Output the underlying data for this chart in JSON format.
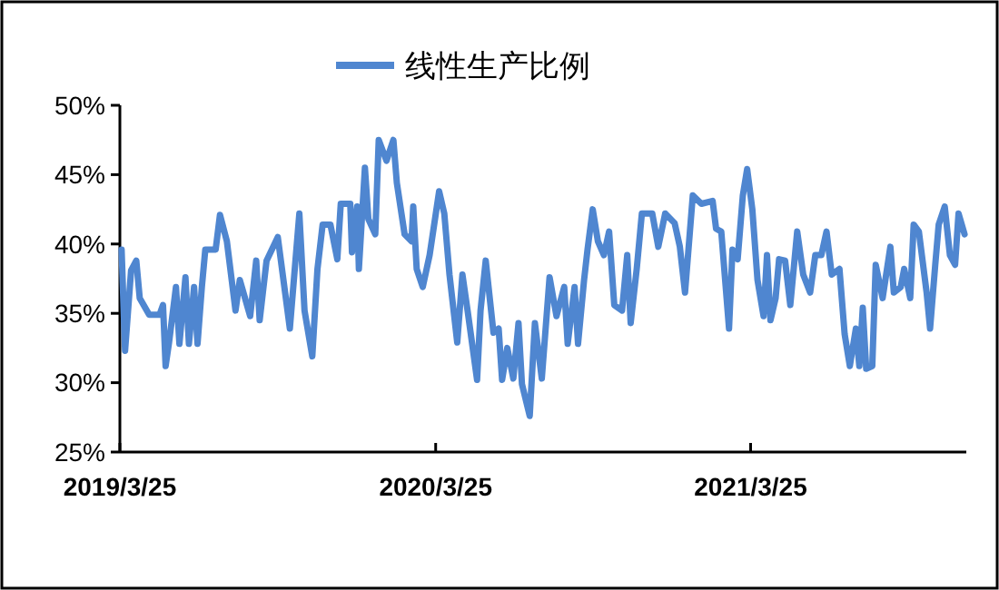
{
  "chart_data": {
    "type": "line",
    "legend": "top",
    "xlim": [
      "2019-03-25",
      "2021-11-30"
    ],
    "xticks": [
      {
        "value": "2019-03-25",
        "label": "2019/3/25"
      },
      {
        "value": "2020-03-25",
        "label": "2020/3/25"
      },
      {
        "value": "2021-03-25",
        "label": "2021/3/25"
      }
    ],
    "ylim": [
      25,
      50
    ],
    "yticks": [
      {
        "value": 25,
        "label": "25%"
      },
      {
        "value": 30,
        "label": "30%"
      },
      {
        "value": 35,
        "label": "35%"
      },
      {
        "value": 40,
        "label": "40%"
      },
      {
        "value": 45,
        "label": "45%"
      },
      {
        "value": 50,
        "label": "50%"
      }
    ],
    "x": [
      "2019-03-27",
      "2019-03-31",
      "2019-04-07",
      "2019-04-13",
      "2019-04-17",
      "2019-04-28",
      "2019-05-10",
      "2019-05-14",
      "2019-05-17",
      "2019-05-21",
      "2019-05-29",
      "2019-06-02",
      "2019-06-09",
      "2019-06-13",
      "2019-06-19",
      "2019-06-23",
      "2019-06-28",
      "2019-07-02",
      "2019-07-14",
      "2019-07-19",
      "2019-07-27",
      "2019-08-06",
      "2019-08-11",
      "2019-08-23",
      "2019-08-30",
      "2019-09-03",
      "2019-09-11",
      "2019-09-24",
      "2019-10-08",
      "2019-10-19",
      "2019-10-25",
      "2019-11-03",
      "2019-11-09",
      "2019-11-15",
      "2019-11-24",
      "2019-12-02",
      "2019-12-06",
      "2019-12-17",
      "2019-12-19",
      "2019-12-25",
      "2019-12-27",
      "2020-01-03",
      "2020-01-07",
      "2020-01-15",
      "2020-01-19",
      "2020-01-28",
      "2020-02-05",
      "2020-02-09",
      "2020-02-18",
      "2020-02-26",
      "2020-02-28",
      "2020-03-03",
      "2020-03-10",
      "2020-03-18",
      "2020-03-29",
      "2020-04-04",
      "2020-04-10",
      "2020-04-19",
      "2020-04-25",
      "2020-05-01",
      "2020-05-12",
      "2020-05-16",
      "2020-05-22",
      "2020-05-31",
      "2020-06-06",
      "2020-06-10",
      "2020-06-16",
      "2020-06-23",
      "2020-06-29",
      "2020-07-03",
      "2020-07-12",
      "2020-07-18",
      "2020-07-26",
      "2020-08-04",
      "2020-08-12",
      "2020-08-21",
      "2020-08-25",
      "2020-09-02",
      "2020-09-06",
      "2020-09-13",
      "2020-09-17",
      "2020-09-23",
      "2020-09-29",
      "2020-10-06",
      "2020-10-12",
      "2020-10-18",
      "2020-10-27",
      "2020-11-02",
      "2020-11-06",
      "2020-11-13",
      "2020-11-19",
      "2020-12-01",
      "2020-12-08",
      "2020-12-16",
      "2020-12-27",
      "2021-01-02",
      "2021-01-08",
      "2021-01-17",
      "2021-01-27",
      "2021-02-09",
      "2021-02-13",
      "2021-02-19",
      "2021-02-28",
      "2021-03-04",
      "2021-03-10",
      "2021-03-16",
      "2021-03-21",
      "2021-03-27",
      "2021-04-02",
      "2021-04-09",
      "2021-04-13",
      "2021-04-17",
      "2021-04-23",
      "2021-04-27",
      "2021-05-04",
      "2021-05-10",
      "2021-05-18",
      "2021-05-25",
      "2021-06-02",
      "2021-06-08",
      "2021-06-15",
      "2021-06-21",
      "2021-06-27",
      "2021-07-06",
      "2021-07-12",
      "2021-07-18",
      "2021-07-25",
      "2021-07-29",
      "2021-08-02",
      "2021-08-06",
      "2021-08-13",
      "2021-08-17",
      "2021-08-25",
      "2021-09-03",
      "2021-09-07",
      "2021-09-15",
      "2021-09-19",
      "2021-09-26",
      "2021-09-30",
      "2021-10-06",
      "2021-10-15",
      "2021-10-19",
      "2021-10-25",
      "2021-10-29",
      "2021-11-05",
      "2021-11-11",
      "2021-11-17",
      "2021-11-21",
      "2021-11-28"
    ],
    "series": [
      {
        "name": "线性生产比例",
        "color": "#4f86d0",
        "values": [
          39.6,
          32.3,
          38.1,
          38.8,
          36.1,
          34.9,
          34.9,
          35.6,
          31.2,
          32.9,
          36.9,
          32.8,
          37.6,
          32.8,
          36.9,
          32.8,
          36.9,
          39.6,
          39.6,
          42.1,
          40.2,
          35.2,
          37.4,
          34.8,
          38.8,
          34.5,
          38.8,
          40.5,
          33.9,
          42.2,
          35.2,
          31.9,
          38.2,
          41.4,
          41.4,
          38.9,
          42.9,
          42.9,
          39.4,
          42.7,
          38.2,
          45.5,
          41.8,
          40.7,
          47.5,
          46.0,
          47.5,
          44.4,
          40.7,
          40.2,
          42.7,
          38.2,
          36.9,
          39.2,
          43.8,
          42.2,
          37.8,
          32.9,
          37.8,
          35.2,
          30.2,
          35.2,
          38.8,
          33.6,
          33.9,
          30.2,
          32.5,
          30.3,
          34.3,
          29.9,
          27.6,
          34.3,
          30.3,
          37.6,
          34.8,
          36.9,
          32.8,
          36.9,
          32.8,
          37.4,
          39.6,
          42.5,
          40.2,
          39.2,
          40.9,
          35.6,
          35.2,
          39.2,
          34.3,
          38.2,
          42.2,
          42.2,
          39.8,
          42.2,
          41.5,
          39.8,
          36.5,
          43.5,
          42.9,
          43.1,
          41.1,
          40.9,
          33.9,
          39.6,
          38.9,
          43.5,
          45.4,
          42.5,
          37.4,
          34.8,
          39.2,
          34.5,
          36.1,
          38.9,
          38.8,
          35.6,
          40.9,
          37.8,
          36.5,
          39.2,
          39.2,
          40.9,
          37.8,
          38.2,
          33.5,
          31.2,
          33.9,
          31.2,
          35.4,
          31.0,
          31.2,
          38.5,
          36.1,
          39.8,
          36.5,
          36.9,
          38.2,
          36.1,
          41.4,
          40.9,
          36.5,
          33.9,
          38.5,
          41.4,
          42.7,
          39.2,
          38.5,
          42.2,
          40.7
        ]
      }
    ]
  }
}
